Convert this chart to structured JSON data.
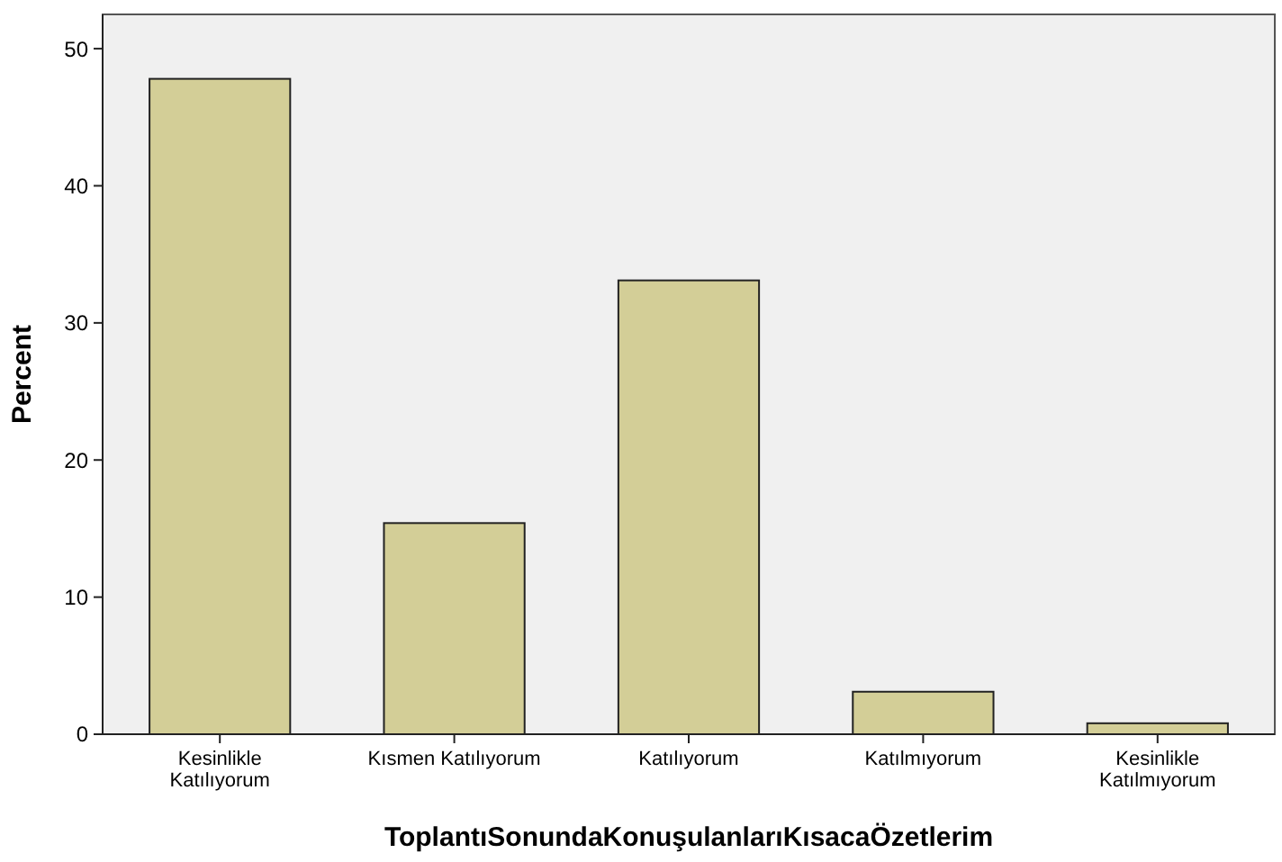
{
  "chart_data": {
    "type": "bar",
    "xlabel": "ToplantıSonundaKonuşulanlarıKısacaÖzetlerim",
    "ylabel": "Percent",
    "categories": [
      "Kesinlikle\nKatılıyorum",
      "Kısmen Katılıyorum",
      "Katılıyorum",
      "Katılmıyorum",
      "Kesinlikle\nKatılmıyorum"
    ],
    "values": [
      47.8,
      15.4,
      33.1,
      3.1,
      0.8
    ],
    "color": "#d3ce97",
    "ylim": [
      0,
      52.5
    ],
    "yticks": [
      0,
      10,
      20,
      30,
      40,
      50
    ],
    "grid": false
  }
}
